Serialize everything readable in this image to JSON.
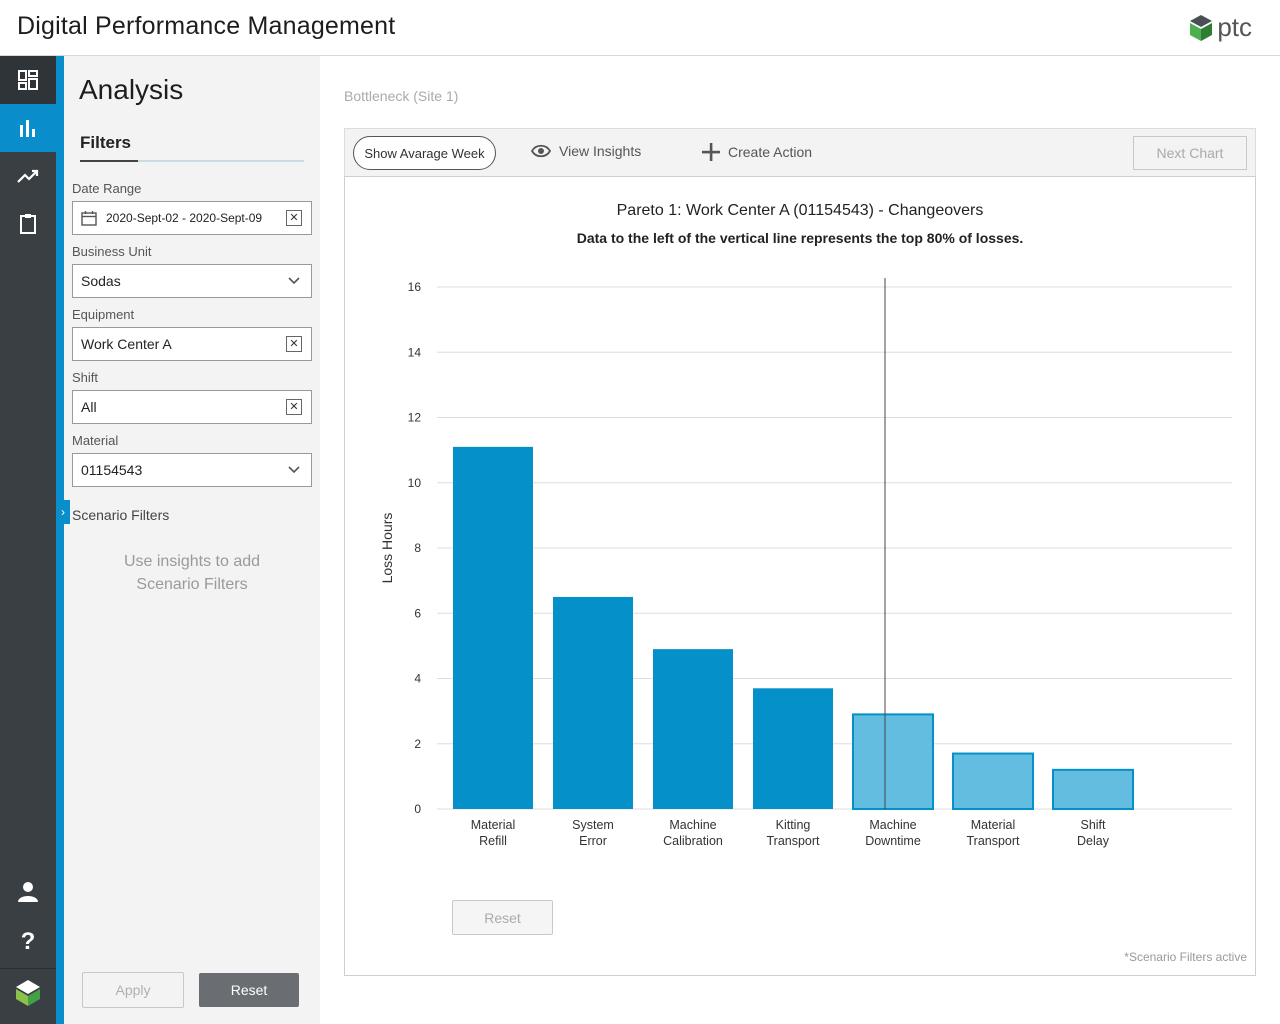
{
  "header": {
    "title": "Digital Performance Management",
    "brand": "ptc"
  },
  "rail": {
    "items": [
      {
        "icon": "dashboard-icon",
        "state": "highlight"
      },
      {
        "icon": "bar-chart-icon",
        "state": "active"
      },
      {
        "icon": "trend-icon",
        "state": "normal"
      },
      {
        "icon": "clipboard-icon",
        "state": "normal"
      }
    ],
    "bottom": [
      {
        "icon": "user-icon"
      },
      {
        "icon": "help-icon"
      },
      {
        "icon": "app-logo-icon"
      }
    ]
  },
  "filters": {
    "page_title": "Analysis",
    "tab_label": "Filters",
    "date_range": {
      "label": "Date Range",
      "value": "2020-Sept-02 - 2020-Sept-09"
    },
    "business_unit": {
      "label": "Business Unit",
      "value": "Sodas"
    },
    "equipment": {
      "label": "Equipment",
      "value": "Work Center A"
    },
    "shift": {
      "label": "Shift",
      "value": "All"
    },
    "material": {
      "label": "Material",
      "value": "01154543"
    },
    "scenario_title": "Scenario Filters",
    "scenario_hint_line1": "Use insights to add",
    "scenario_hint_line2": "Scenario Filters",
    "apply_label": "Apply",
    "reset_label": "Reset"
  },
  "main": {
    "breadcrumb": "Bottleneck (Site 1)",
    "toolbar": {
      "avg_week_label": "Show Avarage Week",
      "insights_label": "View Insights",
      "create_action_label": "Create Action",
      "next_chart_label": "Next Chart"
    },
    "reset_label": "Reset",
    "scenario_active_note": "*Scenario Filters active"
  },
  "chart_data": {
    "type": "bar",
    "title": "Pareto 1: Work Center A (01154543) -  Changeovers",
    "subtitle": "Data to the left of the vertical line represents the top 80% of losses.",
    "ylabel": "Loss Hours",
    "xlabel": "",
    "ylim": [
      0,
      16
    ],
    "yticks": [
      0,
      2,
      4,
      6,
      8,
      10,
      12,
      14,
      16
    ],
    "grid": true,
    "categories": [
      [
        "Material",
        "Refill"
      ],
      [
        "System",
        "Error"
      ],
      [
        "Machine",
        "Calibration"
      ],
      [
        "Kitting",
        "Transport"
      ],
      [
        "Machine",
        "Downtime"
      ],
      [
        "Material",
        "Transport"
      ],
      [
        "Shift",
        "Delay"
      ]
    ],
    "values": [
      11.1,
      6.5,
      4.9,
      3.7,
      2.9,
      1.7,
      1.2
    ],
    "top80_count": 4,
    "colors": {
      "top": "#0590c9",
      "rest": "#62bde0",
      "rest_border": "#0590c9"
    },
    "cutoff_between": [
      4,
      5
    ]
  }
}
